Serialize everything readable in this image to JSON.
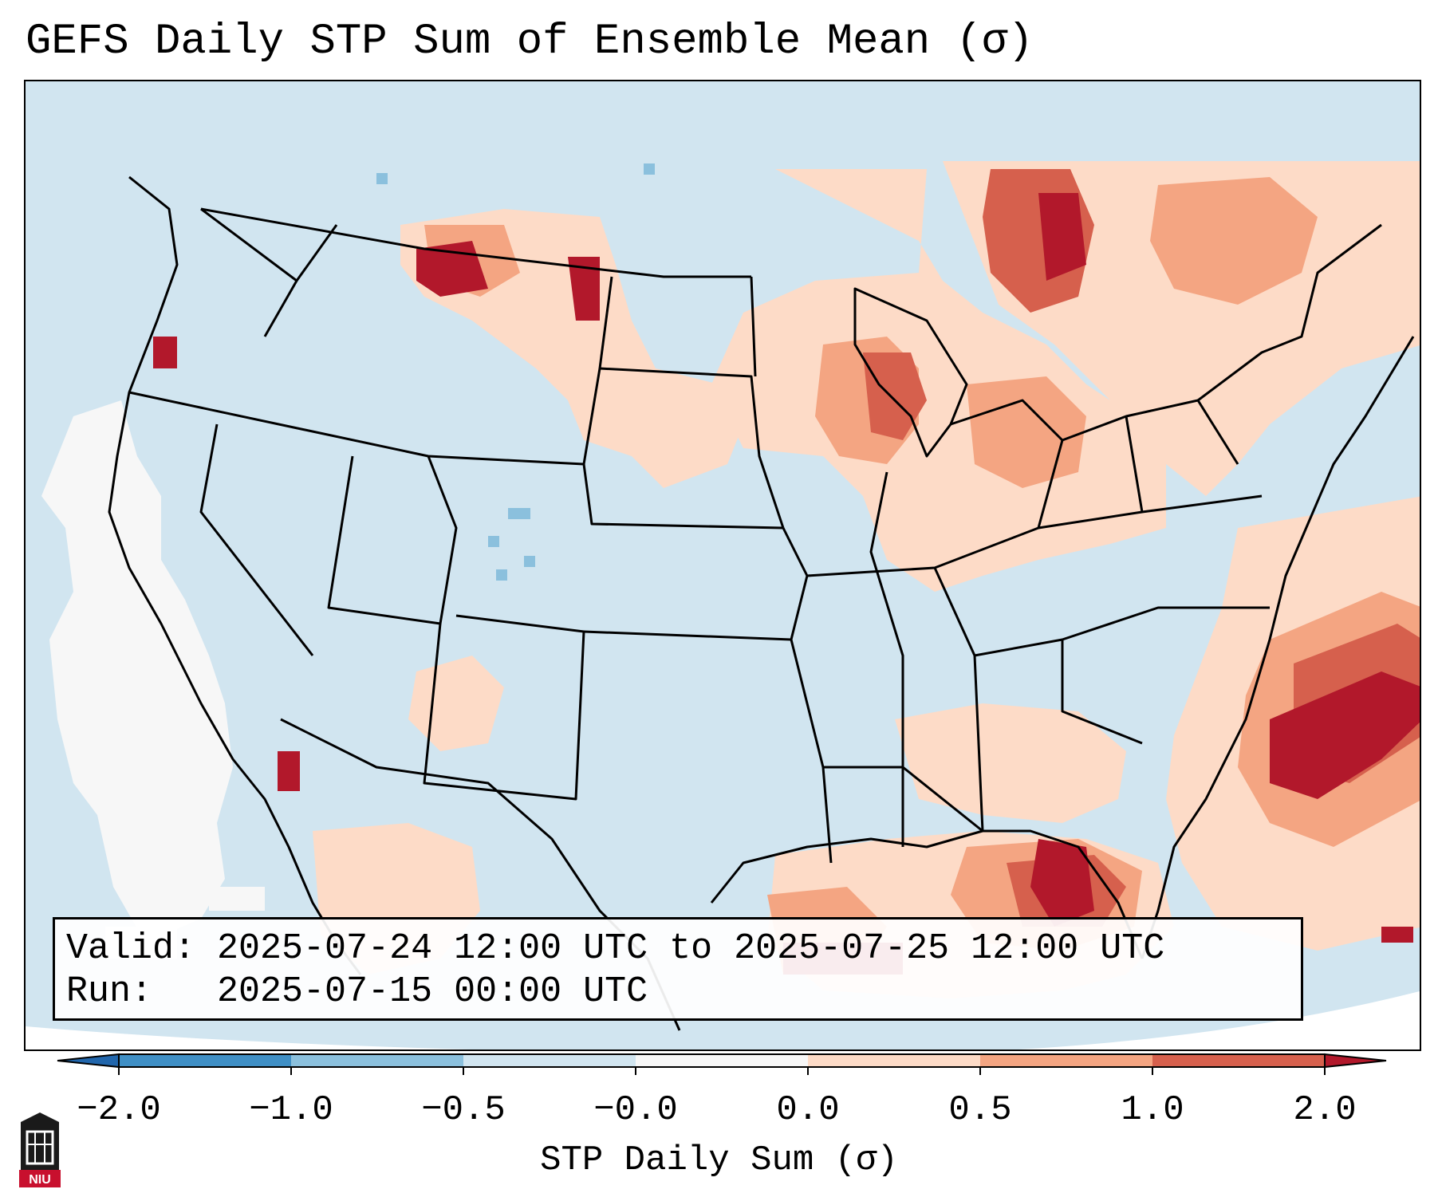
{
  "title": "GEFS Daily STP Sum of Ensemble Mean (σ)",
  "info": {
    "valid": "Valid: 2025-07-24 12:00 UTC to 2025-07-25 12:00 UTC",
    "run": "Run:   2025-07-15 00:00 UTC"
  },
  "colorbar": {
    "label": "STP Daily Sum (σ)",
    "ticks": [
      "−2.0",
      "−1.0",
      "−0.5",
      "−0.0",
      "0.0",
      "0.5",
      "1.0",
      "2.0"
    ],
    "colors": [
      "#3f8fc5",
      "#8bc0dd",
      "#d1e5f0",
      "#f7f7f7",
      "#fddbc7",
      "#f4a582",
      "#d6604d",
      "#b2182b"
    ],
    "extend_low_color": "#2166ac",
    "extend_high_color": "#b2182b"
  },
  "map": {
    "background_color": "#d1e5f0",
    "domain_outside_color": "#ffffff"
  },
  "logo": {
    "text": "NIU",
    "icon": "niu-logo-icon"
  }
}
